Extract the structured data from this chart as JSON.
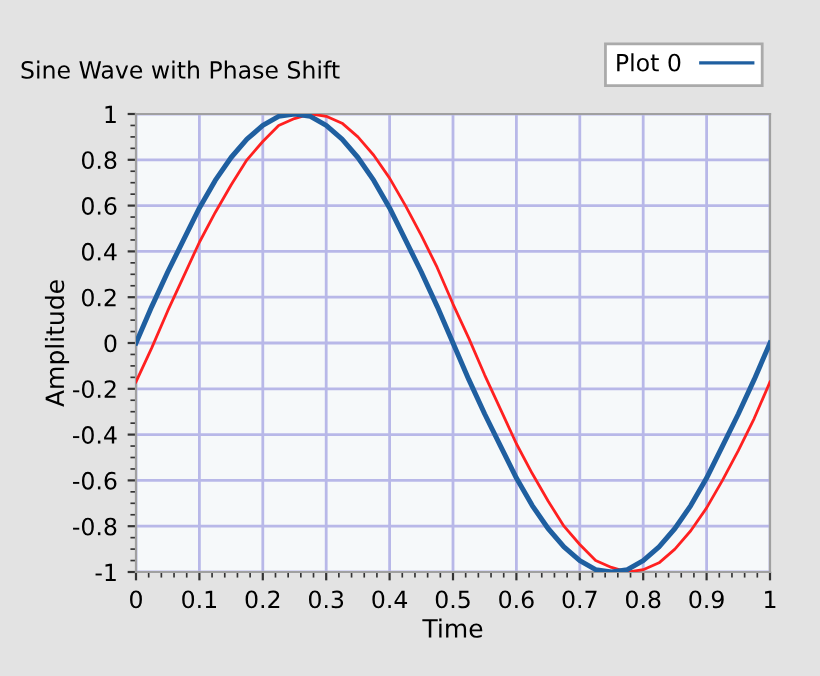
{
  "chart_data": {
    "type": "line",
    "title": "Sine Wave with Phase Shift",
    "xlabel": "Time",
    "ylabel": "Amplitude",
    "x": [
      0,
      0.025,
      0.05,
      0.075,
      0.1,
      0.125,
      0.15,
      0.175,
      0.2,
      0.225,
      0.25,
      0.275,
      0.3,
      0.325,
      0.35,
      0.375,
      0.4,
      0.425,
      0.45,
      0.475,
      0.5,
      0.525,
      0.55,
      0.575,
      0.6,
      0.625,
      0.65,
      0.675,
      0.7,
      0.725,
      0.75,
      0.775,
      0.8,
      0.825,
      0.85,
      0.875,
      0.9,
      0.925,
      0.95,
      0.975,
      1
    ],
    "series": [
      {
        "name": "Plot 0",
        "color": "#1f5fa0",
        "values": [
          0,
          0.16,
          0.31,
          0.45,
          0.59,
          0.71,
          0.81,
          0.89,
          0.95,
          0.99,
          1,
          0.99,
          0.95,
          0.89,
          0.81,
          0.71,
          0.59,
          0.45,
          0.31,
          0.16,
          0,
          -0.16,
          -0.31,
          -0.45,
          -0.59,
          -0.71,
          -0.81,
          -0.89,
          -0.95,
          -0.99,
          -1,
          -0.99,
          -0.95,
          -0.89,
          -0.81,
          -0.71,
          -0.59,
          -0.45,
          -0.31,
          -0.16,
          0
        ]
      },
      {
        "color": "#ff2020",
        "values": [
          -0.17,
          -0.02,
          0.14,
          0.29,
          0.44,
          0.57,
          0.69,
          0.8,
          0.88,
          0.95,
          0.98,
          1,
          0.99,
          0.96,
          0.9,
          0.82,
          0.72,
          0.6,
          0.47,
          0.33,
          0.17,
          0.02,
          -0.14,
          -0.29,
          -0.44,
          -0.57,
          -0.69,
          -0.8,
          -0.88,
          -0.95,
          -0.98,
          -1,
          -0.99,
          -0.96,
          -0.9,
          -0.82,
          -0.72,
          -0.6,
          -0.47,
          -0.33,
          -0.17
        ]
      }
    ],
    "xlim": [
      0,
      1
    ],
    "xticks": [
      0,
      0.1,
      0.2,
      0.3,
      0.4,
      0.5,
      0.6,
      0.7,
      0.8,
      0.9,
      1
    ],
    "ylim": [
      -1,
      1
    ],
    "yticks": [
      -1,
      -0.8,
      -0.6,
      -0.4,
      -0.2,
      0,
      0.2,
      0.4,
      0.6,
      0.8,
      1
    ],
    "grid": true,
    "legend": "top right",
    "marker": "none",
    "line_style": "solid"
  }
}
